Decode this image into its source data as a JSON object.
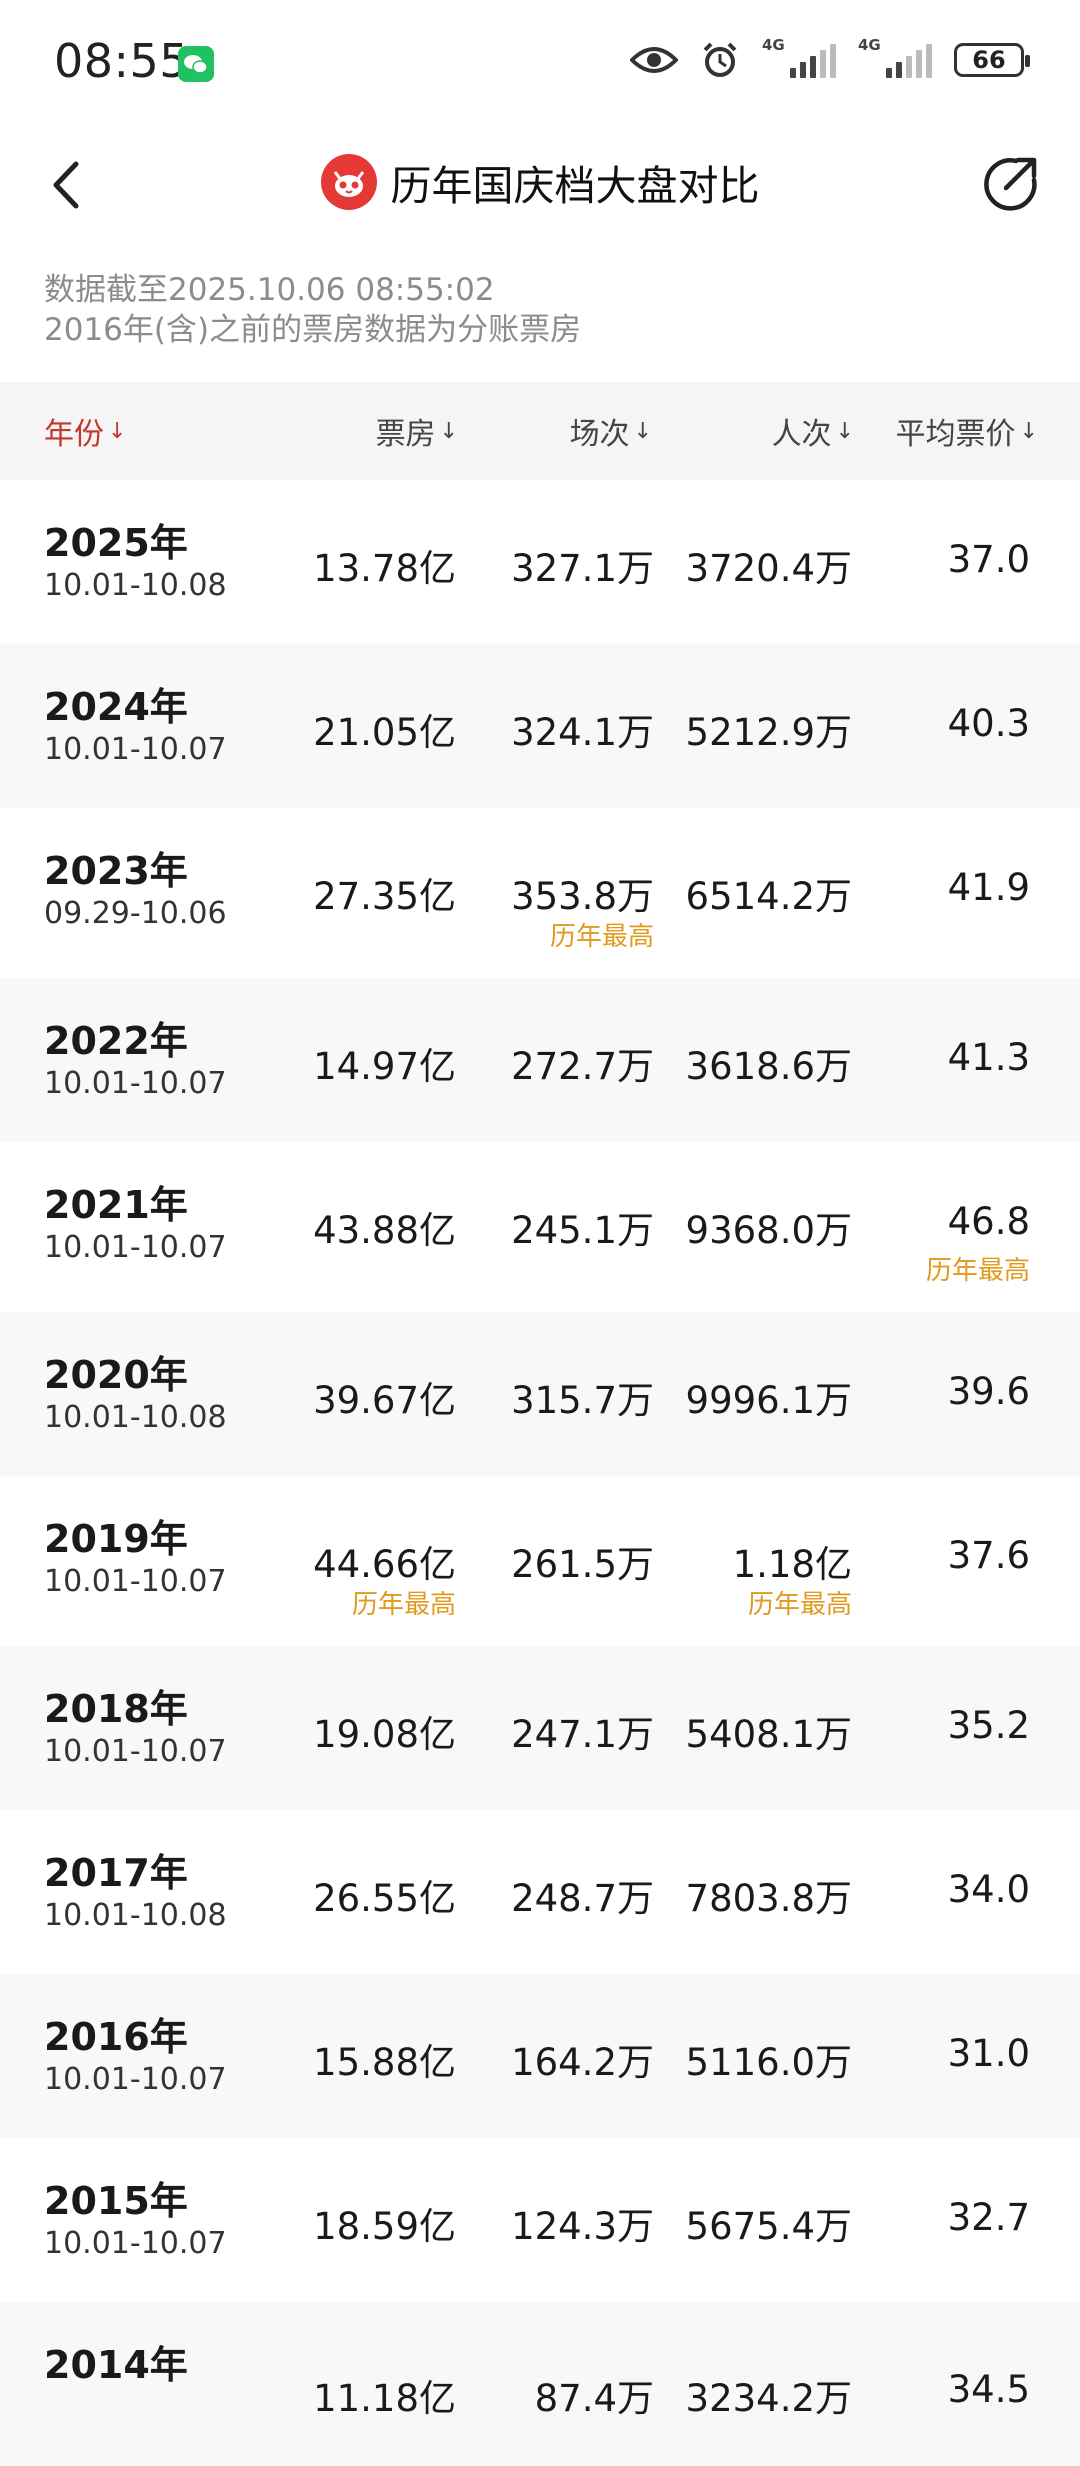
{
  "status_bar": {
    "time": "08:55",
    "signal1_label": "4G",
    "signal2_label": "4G",
    "battery": "66"
  },
  "header": {
    "title": "历年国庆档大盘对比"
  },
  "notes": {
    "line1": "数据截至2025.10.06 08:55:02",
    "line2": "2016年(含)之前的票房数据为分账票房"
  },
  "table": {
    "columns": [
      "年份",
      "票房",
      "场次",
      "人次",
      "平均票价"
    ],
    "sort_arrow": "↓",
    "rows": [
      {
        "year": "2025年",
        "dates": "10.01-10.08",
        "box": "13.78亿",
        "shows": "327.1万",
        "viewers": "3720.4万",
        "price": "37.0",
        "tags": [
          "",
          "",
          "",
          ""
        ]
      },
      {
        "year": "2024年",
        "dates": "10.01-10.07",
        "box": "21.05亿",
        "shows": "324.1万",
        "viewers": "5212.9万",
        "price": "40.3",
        "tags": [
          "",
          "",
          "",
          ""
        ]
      },
      {
        "year": "2023年",
        "dates": "09.29-10.06",
        "box": "27.35亿",
        "shows": "353.8万",
        "viewers": "6514.2万",
        "price": "41.9",
        "tags": [
          "",
          "历年最高",
          "",
          ""
        ]
      },
      {
        "year": "2022年",
        "dates": "10.01-10.07",
        "box": "14.97亿",
        "shows": "272.7万",
        "viewers": "3618.6万",
        "price": "41.3",
        "tags": [
          "",
          "",
          "",
          ""
        ]
      },
      {
        "year": "2021年",
        "dates": "10.01-10.07",
        "box": "43.88亿",
        "shows": "245.1万",
        "viewers": "9368.0万",
        "price": "46.8",
        "tags": [
          "",
          "",
          "",
          "历年最高"
        ]
      },
      {
        "year": "2020年",
        "dates": "10.01-10.08",
        "box": "39.67亿",
        "shows": "315.7万",
        "viewers": "9996.1万",
        "price": "39.6",
        "tags": [
          "",
          "",
          "",
          ""
        ]
      },
      {
        "year": "2019年",
        "dates": "10.01-10.07",
        "box": "44.66亿",
        "shows": "261.5万",
        "viewers": "1.18亿",
        "price": "37.6",
        "tags": [
          "历年最高",
          "",
          "历年最高",
          ""
        ]
      },
      {
        "year": "2018年",
        "dates": "10.01-10.07",
        "box": "19.08亿",
        "shows": "247.1万",
        "viewers": "5408.1万",
        "price": "35.2",
        "tags": [
          "",
          "",
          "",
          ""
        ]
      },
      {
        "year": "2017年",
        "dates": "10.01-10.08",
        "box": "26.55亿",
        "shows": "248.7万",
        "viewers": "7803.8万",
        "price": "34.0",
        "tags": [
          "",
          "",
          "",
          ""
        ]
      },
      {
        "year": "2016年",
        "dates": "10.01-10.07",
        "box": "15.88亿",
        "shows": "164.2万",
        "viewers": "5116.0万",
        "price": "31.0",
        "tags": [
          "",
          "",
          "",
          ""
        ]
      },
      {
        "year": "2015年",
        "dates": "10.01-10.07",
        "box": "18.59亿",
        "shows": "124.3万",
        "viewers": "5675.4万",
        "price": "32.7",
        "tags": [
          "",
          "",
          "",
          ""
        ]
      },
      {
        "year": "2014年",
        "dates": "",
        "box": "11.18亿",
        "shows": "87.4万",
        "viewers": "3234.2万",
        "price": "34.5",
        "tags": [
          "",
          "",
          "",
          ""
        ]
      }
    ]
  },
  "colors": {
    "accent": "#c0392b",
    "highlight_tag": "#e09a1d",
    "logo": "#e53935"
  }
}
